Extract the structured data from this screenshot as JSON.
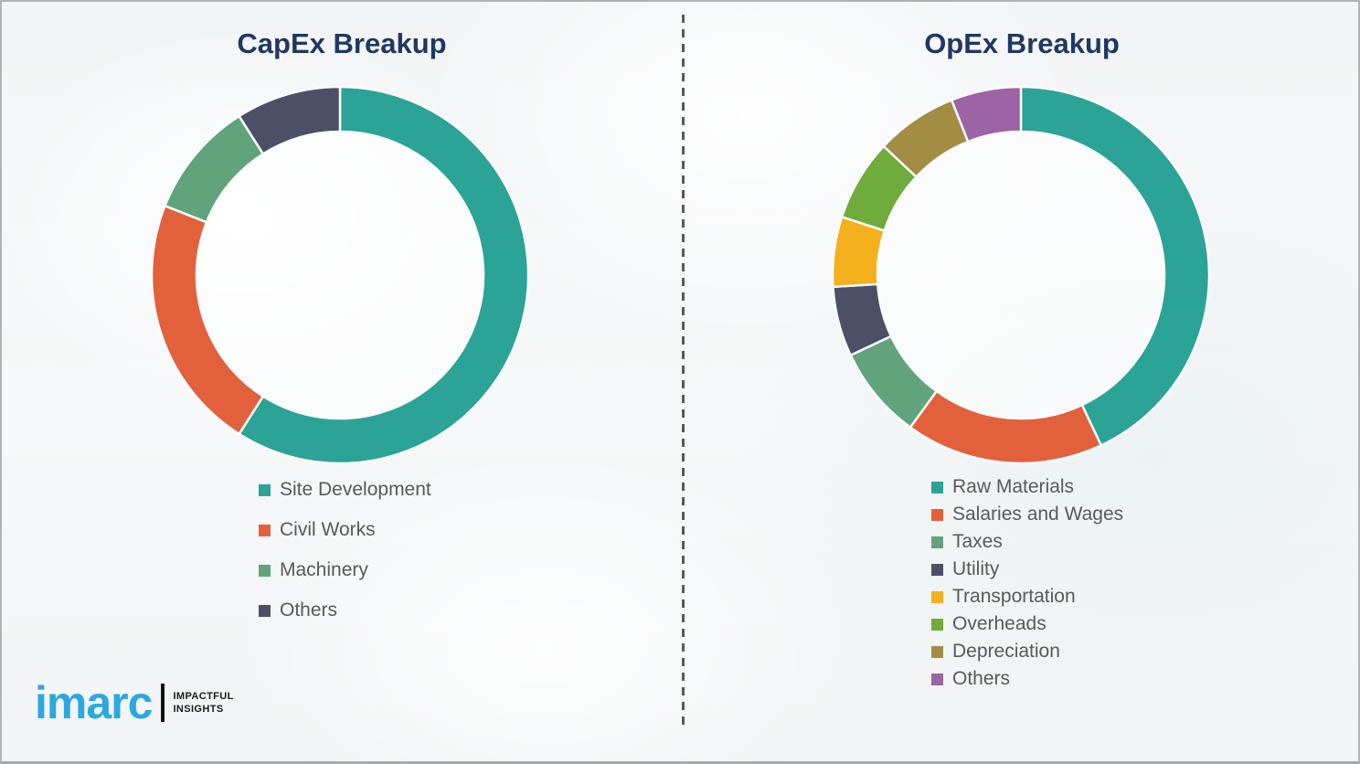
{
  "page": {
    "background_color": "#f5f7f8",
    "divider_color": "#595959",
    "title_color": "#1f3864",
    "legend_text_color": "#595959"
  },
  "chart_data": [
    {
      "type": "pie",
      "variant": "donut",
      "title": "CapEx Breakup",
      "start_angle_deg": 0,
      "direction": "clockwise",
      "values_shown_on_chart": false,
      "values_are_percent_estimates": true,
      "legend_position": "below-left",
      "legend_spacing": "wide",
      "hole_radius_ratio": 0.76,
      "segments": [
        {
          "label": "Site Development",
          "value": 59,
          "color": "#2BA397"
        },
        {
          "label": "Civil Works",
          "value": 22,
          "color": "#E2613C"
        },
        {
          "label": "Machinery",
          "value": 10,
          "color": "#61A47B"
        },
        {
          "label": "Others",
          "value": 9,
          "color": "#4B5066"
        }
      ]
    },
    {
      "type": "pie",
      "variant": "donut",
      "title": "OpEx Breakup",
      "start_angle_deg": 0,
      "direction": "clockwise",
      "values_shown_on_chart": false,
      "values_are_percent_estimates": true,
      "legend_position": "below-left",
      "legend_spacing": "compact",
      "hole_radius_ratio": 0.76,
      "segments": [
        {
          "label": "Raw Materials",
          "value": 43,
          "color": "#2BA397"
        },
        {
          "label": "Salaries and Wages",
          "value": 17,
          "color": "#E2613C"
        },
        {
          "label": "Taxes",
          "value": 8,
          "color": "#61A47B"
        },
        {
          "label": "Utility",
          "value": 6,
          "color": "#4B5066"
        },
        {
          "label": "Transportation",
          "value": 6,
          "color": "#F5B01E"
        },
        {
          "label": "Overheads",
          "value": 7,
          "color": "#6FAC3B"
        },
        {
          "label": "Depreciation",
          "value": 7,
          "color": "#A38C43"
        },
        {
          "label": "Others",
          "value": 6,
          "color": "#9C64A4"
        }
      ]
    }
  ],
  "logo": {
    "brand": "imarc",
    "brand_color": "#2CA8E0",
    "tagline_lines": [
      "IMPACTFUL",
      "INSIGHTS"
    ]
  }
}
